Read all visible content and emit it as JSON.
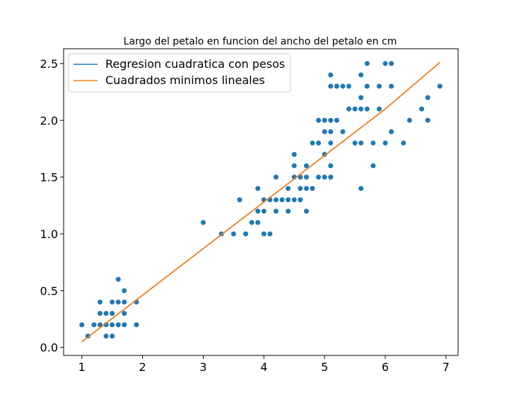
{
  "chart_data": {
    "type": "scatter",
    "title": "Largo del petalo en funcion del ancho del petalo en cm",
    "xlabel": "",
    "ylabel": "",
    "xlim": [
      0.7,
      7.2
    ],
    "ylim": [
      -0.07,
      2.63
    ],
    "xticks": [
      1,
      2,
      3,
      4,
      5,
      6,
      7
    ],
    "xtick_labels": [
      "1",
      "2",
      "3",
      "4",
      "5",
      "6",
      "7"
    ],
    "yticks": [
      0.0,
      0.5,
      1.0,
      1.5,
      2.0,
      2.5
    ],
    "ytick_labels": [
      "0.0",
      "0.5",
      "1.0",
      "1.5",
      "2.0",
      "2.5"
    ],
    "grid": false,
    "legend_position": "top-left",
    "colors": {
      "scatter": "#1f77b4",
      "quadratic": "#1f77b4",
      "linear": "#ff7f0e"
    },
    "scatter_points": [
      [
        1.0,
        0.2
      ],
      [
        1.1,
        0.1
      ],
      [
        1.2,
        0.2
      ],
      [
        1.3,
        0.2
      ],
      [
        1.3,
        0.3
      ],
      [
        1.3,
        0.4
      ],
      [
        1.4,
        0.1
      ],
      [
        1.4,
        0.2
      ],
      [
        1.4,
        0.3
      ],
      [
        1.5,
        0.1
      ],
      [
        1.5,
        0.2
      ],
      [
        1.5,
        0.3
      ],
      [
        1.5,
        0.4
      ],
      [
        1.6,
        0.2
      ],
      [
        1.6,
        0.4
      ],
      [
        1.6,
        0.6
      ],
      [
        1.7,
        0.2
      ],
      [
        1.7,
        0.3
      ],
      [
        1.7,
        0.4
      ],
      [
        1.7,
        0.5
      ],
      [
        1.9,
        0.2
      ],
      [
        1.9,
        0.4
      ],
      [
        3.0,
        1.1
      ],
      [
        3.3,
        1.0
      ],
      [
        3.5,
        1.0
      ],
      [
        3.6,
        1.3
      ],
      [
        3.7,
        1.0
      ],
      [
        3.8,
        1.1
      ],
      [
        3.9,
        1.1
      ],
      [
        3.9,
        1.2
      ],
      [
        3.9,
        1.4
      ],
      [
        4.0,
        1.0
      ],
      [
        4.0,
        1.2
      ],
      [
        4.0,
        1.3
      ],
      [
        4.1,
        1.0
      ],
      [
        4.1,
        1.3
      ],
      [
        4.2,
        1.2
      ],
      [
        4.2,
        1.3
      ],
      [
        4.2,
        1.5
      ],
      [
        4.3,
        1.3
      ],
      [
        4.4,
        1.2
      ],
      [
        4.4,
        1.3
      ],
      [
        4.4,
        1.4
      ],
      [
        4.5,
        1.3
      ],
      [
        4.5,
        1.5
      ],
      [
        4.5,
        1.6
      ],
      [
        4.5,
        1.7
      ],
      [
        4.6,
        1.3
      ],
      [
        4.6,
        1.4
      ],
      [
        4.6,
        1.5
      ],
      [
        4.7,
        1.2
      ],
      [
        4.7,
        1.4
      ],
      [
        4.7,
        1.5
      ],
      [
        4.7,
        1.6
      ],
      [
        4.8,
        1.4
      ],
      [
        4.8,
        1.8
      ],
      [
        4.9,
        1.5
      ],
      [
        4.9,
        1.8
      ],
      [
        4.9,
        2.0
      ],
      [
        5.0,
        1.5
      ],
      [
        5.0,
        1.7
      ],
      [
        5.0,
        1.9
      ],
      [
        5.0,
        2.0
      ],
      [
        5.1,
        1.5
      ],
      [
        5.1,
        1.6
      ],
      [
        5.1,
        1.8
      ],
      [
        5.1,
        1.9
      ],
      [
        5.1,
        2.0
      ],
      [
        5.1,
        2.3
      ],
      [
        5.1,
        2.4
      ],
      [
        5.2,
        2.0
      ],
      [
        5.2,
        2.3
      ],
      [
        5.3,
        1.9
      ],
      [
        5.3,
        2.3
      ],
      [
        5.4,
        2.1
      ],
      [
        5.4,
        2.3
      ],
      [
        5.5,
        1.8
      ],
      [
        5.5,
        2.1
      ],
      [
        5.6,
        1.4
      ],
      [
        5.6,
        1.8
      ],
      [
        5.6,
        2.1
      ],
      [
        5.6,
        2.2
      ],
      [
        5.6,
        2.4
      ],
      [
        5.7,
        2.1
      ],
      [
        5.7,
        2.3
      ],
      [
        5.7,
        2.5
      ],
      [
        5.8,
        1.6
      ],
      [
        5.8,
        1.8
      ],
      [
        5.9,
        2.1
      ],
      [
        5.9,
        2.3
      ],
      [
        6.0,
        1.8
      ],
      [
        6.0,
        2.5
      ],
      [
        6.1,
        1.9
      ],
      [
        6.1,
        2.3
      ],
      [
        6.1,
        2.5
      ],
      [
        6.3,
        1.8
      ],
      [
        6.4,
        2.0
      ],
      [
        6.6,
        2.1
      ],
      [
        6.7,
        2.0
      ],
      [
        6.7,
        2.2
      ],
      [
        6.9,
        2.3
      ]
    ],
    "series": [
      {
        "name": "Regresion cuadratica con pesos",
        "type": "line",
        "x": [
          1.0,
          2.0,
          3.0,
          4.0,
          5.0,
          6.0,
          6.9
        ],
        "y": [
          0.05,
          0.46,
          0.87,
          1.28,
          1.69,
          2.1,
          2.51
        ]
      },
      {
        "name": "Cuadrados minimos lineales",
        "type": "line",
        "x": [
          1.0,
          2.0,
          3.0,
          4.0,
          5.0,
          6.0,
          6.9
        ],
        "y": [
          0.05,
          0.46,
          0.87,
          1.28,
          1.69,
          2.1,
          2.51
        ]
      }
    ]
  }
}
